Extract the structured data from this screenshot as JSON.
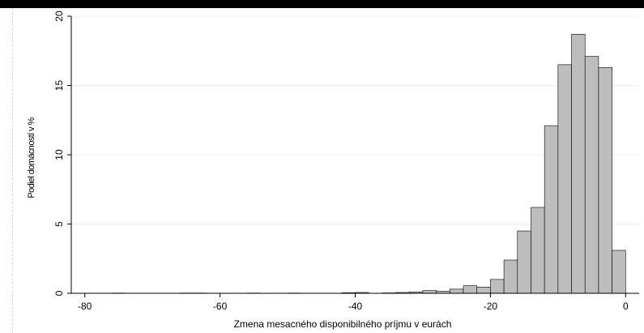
{
  "chart_data": {
    "type": "bar",
    "title": "",
    "xlabel": "Zmena mesacného disponibilného príjmu v eurách",
    "ylabel": "Podiel domácností v %",
    "xlim": [
      -82,
      2
    ],
    "ylim": [
      0,
      20
    ],
    "xticks": [
      -80,
      -60,
      -40,
      -20,
      0
    ],
    "yticks": [
      0,
      5,
      10,
      15,
      20
    ],
    "grid": true,
    "bar_color": "#bdbdbd",
    "bar_edge_color": "#000000",
    "bin_width": 2,
    "bins": [
      {
        "start": -76,
        "end": -74,
        "value": 0.02
      },
      {
        "start": -66,
        "end": -64,
        "value": 0.02
      },
      {
        "start": -64,
        "end": -62,
        "value": 0.02
      },
      {
        "start": -56,
        "end": -54,
        "value": 0.02
      },
      {
        "start": -50,
        "end": -48,
        "value": 0.02
      },
      {
        "start": -42,
        "end": -40,
        "value": 0.04
      },
      {
        "start": -40,
        "end": -38,
        "value": 0.06
      },
      {
        "start": -36,
        "end": -34,
        "value": 0.03
      },
      {
        "start": -34,
        "end": -32,
        "value": 0.06
      },
      {
        "start": -32,
        "end": -30,
        "value": 0.1
      },
      {
        "start": -30,
        "end": -28,
        "value": 0.2
      },
      {
        "start": -28,
        "end": -26,
        "value": 0.15
      },
      {
        "start": -26,
        "end": -24,
        "value": 0.3
      },
      {
        "start": -24,
        "end": -22,
        "value": 0.55
      },
      {
        "start": -22,
        "end": -20,
        "value": 0.45
      },
      {
        "start": -20,
        "end": -18,
        "value": 1.0
      },
      {
        "start": -18,
        "end": -16,
        "value": 2.4
      },
      {
        "start": -16,
        "end": -14,
        "value": 4.5
      },
      {
        "start": -14,
        "end": -12,
        "value": 6.2
      },
      {
        "start": -12,
        "end": -10,
        "value": 12.1
      },
      {
        "start": -10,
        "end": -8,
        "value": 16.5
      },
      {
        "start": -8,
        "end": -6,
        "value": 18.7
      },
      {
        "start": -6,
        "end": -4,
        "value": 17.1
      },
      {
        "start": -4,
        "end": -2,
        "value": 16.3
      },
      {
        "start": -2,
        "end": 0,
        "value": 3.1
      }
    ]
  }
}
